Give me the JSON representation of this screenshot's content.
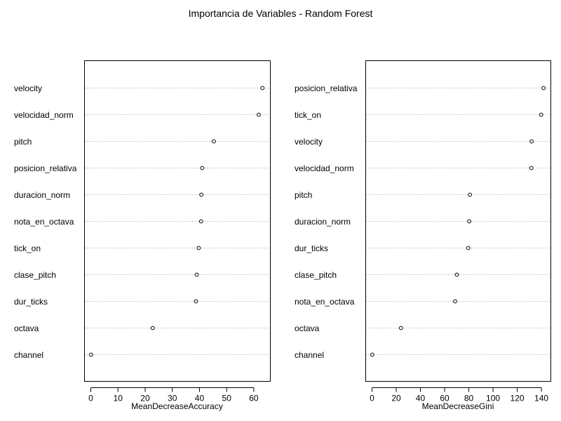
{
  "chart_data": {
    "type": "scatter",
    "title": "Importancia de Variables - Random Forest",
    "panels": [
      {
        "xlabel": "MeanDecreaseAccuracy",
        "xlim": [
          0,
          63.5
        ],
        "xticks": [
          0,
          10,
          20,
          30,
          40,
          50,
          60
        ],
        "grid": "horizontal dotted",
        "categories": [
          "velocity",
          "velocidad_norm",
          "pitch",
          "posicion_relativa",
          "duracion_norm",
          "nota_en_octava",
          "tick_on",
          "clase_pitch",
          "dur_ticks",
          "octava",
          "channel"
        ],
        "values": [
          63.2,
          61.8,
          45.3,
          41.0,
          40.7,
          40.6,
          39.7,
          39.0,
          38.7,
          22.8,
          0.1
        ]
      },
      {
        "xlabel": "MeanDecreaseGini",
        "xlim": [
          0,
          142
        ],
        "xticks": [
          0,
          20,
          40,
          60,
          80,
          100,
          120,
          140
        ],
        "grid": "horizontal dotted",
        "categories": [
          "posicion_relativa",
          "tick_on",
          "velocity",
          "velocidad_norm",
          "pitch",
          "duracion_norm",
          "dur_ticks",
          "clase_pitch",
          "nota_en_octava",
          "octava",
          "channel"
        ],
        "values": [
          141.8,
          139.8,
          131.9,
          131.7,
          80.9,
          80.3,
          79.6,
          70.1,
          68.7,
          24.0,
          0.2
        ]
      }
    ]
  }
}
